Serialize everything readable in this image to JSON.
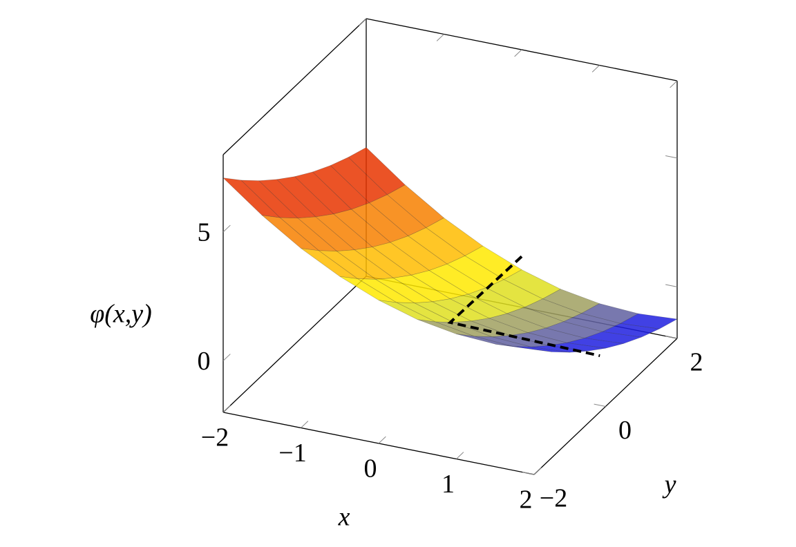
{
  "chart_data": {
    "type": "surface",
    "x_label": "x",
    "y_label": "y",
    "z_label": "φ(x,y)",
    "x": [
      -2,
      -1.5,
      -1,
      -0.5,
      0,
      0.5,
      1,
      1.5,
      2
    ],
    "y": [
      -2,
      -1.5,
      -1,
      -0.5,
      0,
      0.5,
      1,
      1.5,
      2
    ],
    "z": [
      [
        7.1,
        5.95,
        4.97,
        4.18,
        3.56,
        3.11,
        2.85,
        2.76,
        2.85
      ],
      [
        6.35,
        5.2,
        4.22,
        3.43,
        2.81,
        2.36,
        2.1,
        2.01,
        2.1
      ],
      [
        5.67,
        4.52,
        3.54,
        2.75,
        2.13,
        1.68,
        1.42,
        1.33,
        1.42
      ],
      [
        5.06,
        3.91,
        2.93,
        2.14,
        1.52,
        1.07,
        0.81,
        0.72,
        0.81
      ],
      [
        4.51,
        3.36,
        2.38,
        1.59,
        0.97,
        0.52,
        0.26,
        0.17,
        0.26
      ],
      [
        4.03,
        2.88,
        1.9,
        1.11,
        0.49,
        0.04,
        -0.22,
        -0.31,
        -0.22
      ],
      [
        3.62,
        2.47,
        1.49,
        0.7,
        0.08,
        -0.37,
        -0.63,
        -0.72,
        -0.63
      ],
      [
        3.28,
        2.13,
        1.15,
        0.36,
        -0.26,
        -0.71,
        -0.97,
        -1.06,
        -0.97
      ],
      [
        3.0,
        1.85,
        0.87,
        0.08,
        -0.54,
        -0.99,
        -1.25,
        -1.34,
        -1.25
      ]
    ],
    "colormap": [
      "#e01000",
      "#ffa500",
      "#ffff00",
      "#808080",
      "#0000ff"
    ],
    "opacity": 0.85,
    "xlim": [
      -2,
      2
    ],
    "ylim": [
      -2,
      2
    ],
    "zlim": [
      -2,
      8
    ],
    "xticks": [
      {
        "value": -2,
        "label": "−2"
      },
      {
        "value": -1,
        "label": "−1"
      },
      0,
      1,
      2
    ],
    "yticks": [
      {
        "value": -2,
        "label": "−2"
      },
      0,
      2
    ],
    "zticks": [
      0,
      5
    ],
    "dashed_path": {
      "x": [
        0.92,
        0.92,
        2
      ],
      "y": [
        0,
        -2,
        -0.16
      ],
      "z": [
        3.17,
        3.25,
        0.18
      ]
    }
  }
}
